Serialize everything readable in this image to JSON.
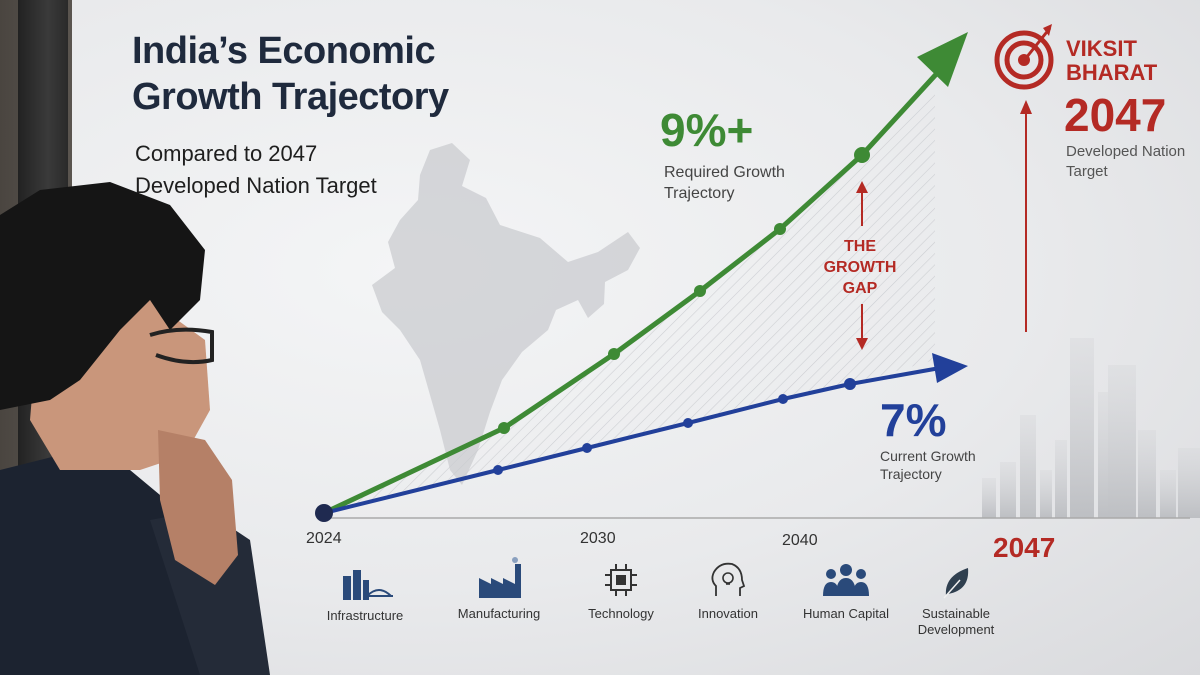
{
  "poster": {
    "title_line1": "India’s Economic",
    "title_line2": "Growth Trajectory",
    "subtitle_line1": "Compared to 2047",
    "subtitle_line2": "Developed Nation Target",
    "required": {
      "value": "9%+",
      "line1": "Required Growth",
      "line2": "Trajectory",
      "color": "#3e8a35"
    },
    "current": {
      "value": "7%",
      "line1": "Current Growth",
      "line2": "Trajectory",
      "color": "#22409a"
    },
    "gap": {
      "line1": "THE",
      "line2": "GROWTH",
      "line3": "GAP",
      "color": "#b42a24"
    },
    "target": {
      "line1": "VIKSIT",
      "line2": "BHARAT",
      "year": "2047",
      "desc_line1": "Developed Nation",
      "desc_line2": "Target"
    },
    "axis": {
      "t2024": "2024",
      "t2030": "2030",
      "t2040": "2040",
      "t2047": "2047"
    },
    "categories": [
      {
        "label": "Infrastructure",
        "icon": "buildings-bridge-icon"
      },
      {
        "label": "Manufacturing",
        "icon": "factory-icon"
      },
      {
        "label": "Technology",
        "icon": "chip-icon"
      },
      {
        "label": "Innovation",
        "icon": "head-lightbulb-icon"
      },
      {
        "label": "Human Capital",
        "icon": "people-icon"
      },
      {
        "label": "Sustainable",
        "label2": "Development",
        "icon": "leaf-icon"
      }
    ]
  }
}
